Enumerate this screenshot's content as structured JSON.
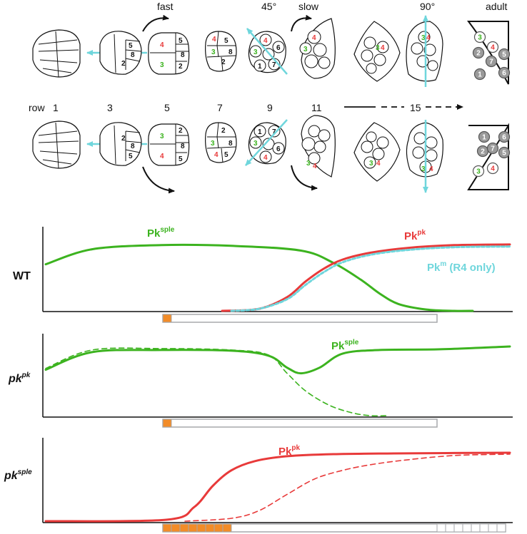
{
  "top_labels": {
    "fast": "fast",
    "angle45": "45°",
    "slow": "slow",
    "angle90": "90°",
    "adult": "adult"
  },
  "row_labels": {
    "row": "row",
    "r1": "1",
    "r3": "3",
    "r5": "5",
    "r7": "7",
    "r9": "9",
    "r11": "11",
    "r15": "15"
  },
  "cluster_numbers": {
    "c3_top": [
      "5",
      "8",
      "2"
    ],
    "c5_top": [
      "4",
      "3",
      "5",
      "8",
      "2"
    ],
    "c7_top": [
      "4",
      "5",
      "3",
      "2",
      "8"
    ],
    "c9_top": [
      "4",
      "6",
      "3",
      "1",
      "7"
    ],
    "c11_top": [
      "4",
      "3"
    ],
    "c13_top": [
      "3",
      "4"
    ],
    "c15_top": [
      "3",
      "4"
    ],
    "c3_bot": [
      "2",
      "8",
      "5"
    ],
    "c5_bot": [
      "3",
      "4",
      "2",
      "8",
      "5"
    ],
    "c7_bot": [
      "2",
      "3",
      "8",
      "4",
      "5"
    ],
    "c9_bot": [
      "1",
      "7",
      "3",
      "6",
      "4"
    ],
    "c11_bot": [
      "3",
      "4"
    ],
    "c13_bot": [
      "3",
      "4"
    ],
    "c15_bot": [
      "3",
      "4"
    ]
  },
  "adult_top": [
    "3",
    "4",
    "2",
    "7",
    "5",
    "1",
    "6"
  ],
  "adult_bot": [
    "1",
    "6",
    "2",
    "7",
    "5",
    "3",
    "4"
  ],
  "panels": {
    "wt": {
      "label": "WT",
      "pksple": "Pk",
      "pksple_sup": "sple",
      "pkpk": "Pk",
      "pkpk_sup": "pk",
      "pkm": "Pk",
      "pkm_sup": "m",
      "pkm_note": " (R4 only)"
    },
    "pkpk": {
      "label": "pk",
      "label_sup": "pk",
      "pksple": "Pk",
      "pksple_sup": "sple"
    },
    "pksple": {
      "label": "pk",
      "label_sup": "sple",
      "pkpk": "Pk",
      "pkpk_sup": "pk"
    }
  },
  "colors": {
    "green": "#3cb31f",
    "red": "#e83a3a",
    "cyan": "#6fd6dc",
    "orange": "#f28c28",
    "gray": "#a7a9ac",
    "adult_gray": "#9a9a9a"
  },
  "chart_data": [
    {
      "type": "line",
      "title": "WT",
      "x_range": [
        0,
        100
      ],
      "y_range": [
        0,
        1
      ],
      "series": [
        {
          "name": "Pk sple",
          "style": "solid",
          "color": "green",
          "x": [
            0,
            10,
            25,
            40,
            55,
            62,
            68,
            72,
            76,
            82,
            88,
            92
          ],
          "y": [
            0.68,
            0.9,
            0.96,
            0.95,
            0.88,
            0.7,
            0.45,
            0.25,
            0.1,
            0.02,
            0.0,
            0.0
          ]
        },
        {
          "name": "Pk pk",
          "style": "solid",
          "color": "red",
          "x": [
            38,
            46,
            52,
            56,
            60,
            64,
            70,
            78,
            88,
            100
          ],
          "y": [
            0.0,
            0.03,
            0.2,
            0.43,
            0.62,
            0.75,
            0.85,
            0.92,
            0.96,
            0.97
          ]
        },
        {
          "name": "Pk m (R4 only)",
          "style": "dashed",
          "color": "cyan",
          "x": [
            40,
            46,
            52,
            56,
            60,
            64,
            70,
            78,
            88,
            100
          ],
          "y": [
            0.0,
            0.03,
            0.17,
            0.38,
            0.57,
            0.71,
            0.82,
            0.89,
            0.93,
            0.94
          ]
        }
      ]
    },
    {
      "type": "line",
      "title": "pk pk",
      "x_range": [
        0,
        100
      ],
      "y_range": [
        0,
        1
      ],
      "series": [
        {
          "name": "Pk sple",
          "style": "solid",
          "color": "green",
          "x": [
            0,
            10,
            25,
            40,
            48,
            52,
            55,
            59,
            64,
            72,
            85,
            100
          ],
          "y": [
            0.65,
            0.9,
            0.93,
            0.92,
            0.85,
            0.68,
            0.6,
            0.68,
            0.88,
            0.93,
            0.94,
            0.98
          ]
        },
        {
          "name": "Pk sple (WT reference)",
          "style": "dashed",
          "color": "green",
          "x": [
            0,
            10,
            25,
            40,
            48,
            52,
            56,
            61,
            66,
            70,
            74
          ],
          "y": [
            0.67,
            0.93,
            0.95,
            0.93,
            0.86,
            0.6,
            0.35,
            0.15,
            0.04,
            0.0,
            0.0
          ]
        }
      ]
    },
    {
      "type": "line",
      "title": "pk sple",
      "x_range": [
        0,
        100
      ],
      "y_range": [
        0,
        1
      ],
      "series": [
        {
          "name": "Pk pk",
          "style": "solid",
          "color": "red",
          "x": [
            0,
            26,
            32,
            36,
            40,
            45,
            52,
            62,
            75,
            100
          ],
          "y": [
            0.0,
            0.02,
            0.2,
            0.5,
            0.72,
            0.85,
            0.92,
            0.95,
            0.96,
            0.97
          ]
        },
        {
          "name": "Pk pk (WT reference)",
          "style": "dashed",
          "color": "red",
          "x": [
            30,
            40,
            46,
            52,
            58,
            64,
            70,
            78,
            88,
            100
          ],
          "y": [
            0.0,
            0.04,
            0.15,
            0.38,
            0.6,
            0.72,
            0.8,
            0.87,
            0.93,
            0.95
          ]
        }
      ]
    }
  ]
}
